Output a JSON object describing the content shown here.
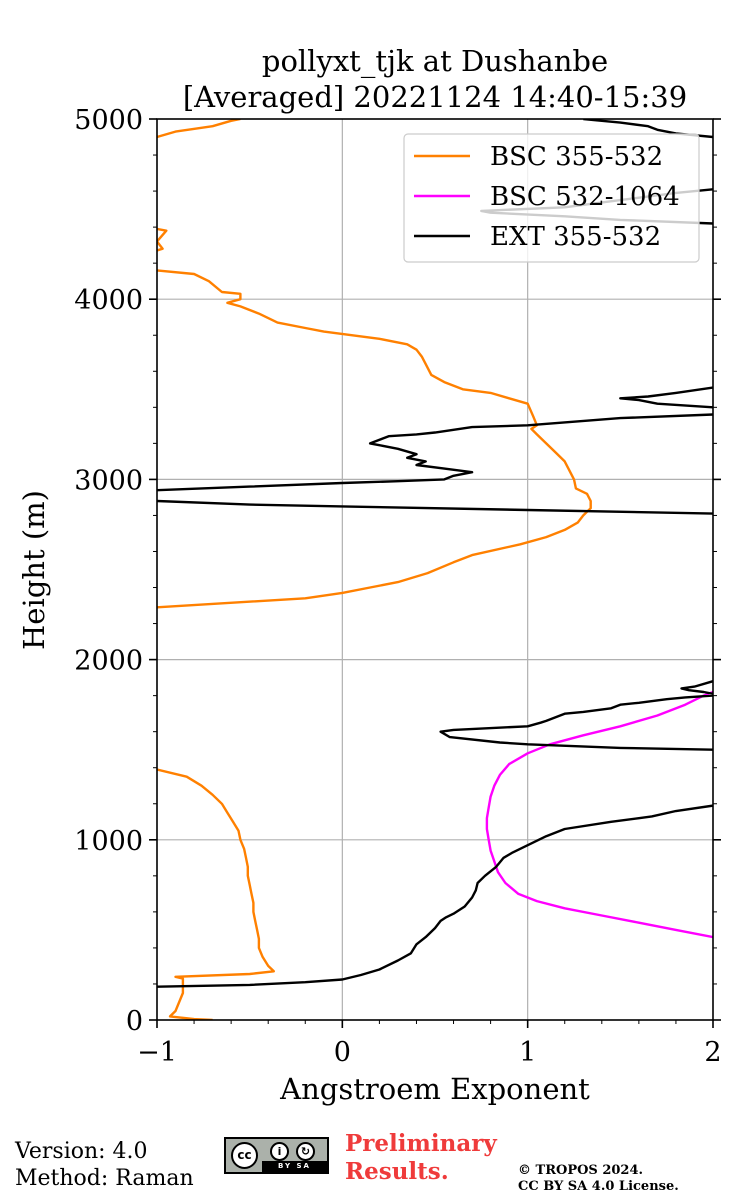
{
  "chart_data": {
    "type": "line",
    "title": [
      "pollyxt_tjk at Dushanbe",
      "[Averaged] 20221124 14:40-15:39"
    ],
    "xlabel": "Angstroem Exponent",
    "ylabel": "Height (m)",
    "xlim": [
      -1,
      2
    ],
    "ylim": [
      0,
      5000
    ],
    "xticks": [
      -1,
      0,
      1,
      2
    ],
    "xtick_labels": [
      "−1",
      "0",
      "1",
      "2"
    ],
    "yticks": [
      0,
      1000,
      2000,
      3000,
      4000,
      5000
    ],
    "ytick_labels": [
      "0",
      "1000",
      "2000",
      "3000",
      "4000",
      "5000"
    ],
    "grid": true,
    "legend_position": "upper right",
    "series": [
      {
        "name": "BSC 355-532",
        "color": "#ff8000",
        "points": [
          [
            -0.7,
            0
          ],
          [
            -0.8,
            5
          ],
          [
            -0.93,
            20
          ],
          [
            -0.9,
            50
          ],
          [
            -0.88,
            100
          ],
          [
            -0.86,
            150
          ],
          [
            -0.86,
            200
          ],
          [
            -0.86,
            230
          ],
          [
            -0.9,
            240
          ],
          [
            -0.5,
            255
          ],
          [
            -0.37,
            270
          ],
          [
            -0.4,
            300
          ],
          [
            -0.43,
            350
          ],
          [
            -0.45,
            400
          ],
          [
            -0.45,
            450
          ],
          [
            -0.46,
            500
          ],
          [
            -0.47,
            550
          ],
          [
            -0.48,
            600
          ],
          [
            -0.48,
            650
          ],
          [
            -0.49,
            700
          ],
          [
            -0.5,
            750
          ],
          [
            -0.51,
            800
          ],
          [
            -0.51,
            850
          ],
          [
            -0.52,
            900
          ],
          [
            -0.53,
            950
          ],
          [
            -0.55,
            1000
          ],
          [
            -0.56,
            1050
          ],
          [
            -0.59,
            1100
          ],
          [
            -0.62,
            1150
          ],
          [
            -0.65,
            1200
          ],
          [
            -0.7,
            1250
          ],
          [
            -0.76,
            1300
          ],
          [
            -0.84,
            1350
          ],
          [
            -1.0,
            1390
          ],
          [
            null,
            null
          ],
          [
            -1.0,
            2290
          ],
          [
            -0.2,
            2340
          ],
          [
            0.0,
            2370
          ],
          [
            0.15,
            2400
          ],
          [
            0.3,
            2430
          ],
          [
            0.46,
            2480
          ],
          [
            0.6,
            2540
          ],
          [
            0.7,
            2580
          ],
          [
            0.96,
            2640
          ],
          [
            1.1,
            2680
          ],
          [
            1.2,
            2720
          ],
          [
            1.27,
            2760
          ],
          [
            1.3,
            2800
          ],
          [
            1.34,
            2840
          ],
          [
            1.34,
            2880
          ],
          [
            1.32,
            2920
          ],
          [
            1.26,
            2950
          ],
          [
            1.25,
            3000
          ],
          [
            1.22,
            3060
          ],
          [
            1.2,
            3100
          ],
          [
            1.15,
            3150
          ],
          [
            1.1,
            3200
          ],
          [
            1.05,
            3250
          ],
          [
            1.02,
            3280
          ],
          [
            1.05,
            3300
          ],
          [
            1.03,
            3350
          ],
          [
            1.0,
            3420
          ],
          [
            0.9,
            3450
          ],
          [
            0.8,
            3480
          ],
          [
            0.65,
            3500
          ],
          [
            0.55,
            3540
          ],
          [
            0.48,
            3580
          ],
          [
            0.45,
            3640
          ],
          [
            0.43,
            3680
          ],
          [
            0.4,
            3720
          ],
          [
            0.35,
            3750
          ],
          [
            0.2,
            3780
          ],
          [
            -0.1,
            3820
          ],
          [
            -0.2,
            3840
          ],
          [
            -0.35,
            3870
          ],
          [
            -0.45,
            3920
          ],
          [
            -0.55,
            3960
          ],
          [
            -0.62,
            3980
          ],
          [
            -0.55,
            4000
          ],
          [
            -0.55,
            4030
          ],
          [
            -0.65,
            4040
          ],
          [
            -0.72,
            4100
          ],
          [
            -0.8,
            4140
          ],
          [
            -1.0,
            4160
          ],
          [
            null,
            null
          ],
          [
            -1.0,
            4270
          ],
          [
            -0.97,
            4280
          ],
          [
            -1.0,
            4320
          ],
          [
            -0.95,
            4380
          ],
          [
            -1.0,
            4390
          ],
          [
            null,
            null
          ],
          [
            -1.0,
            4900
          ],
          [
            -0.9,
            4930
          ],
          [
            -0.7,
            4960
          ],
          [
            -0.6,
            4990
          ],
          [
            -0.55,
            5000
          ]
        ]
      },
      {
        "name": "BSC 532-1064",
        "color": "#ff00ff",
        "points": [
          [
            2.0,
            460
          ],
          [
            1.8,
            500
          ],
          [
            1.6,
            540
          ],
          [
            1.4,
            580
          ],
          [
            1.2,
            620
          ],
          [
            1.05,
            660
          ],
          [
            0.95,
            700
          ],
          [
            0.88,
            760
          ],
          [
            0.84,
            820
          ],
          [
            0.82,
            880
          ],
          [
            0.8,
            940
          ],
          [
            0.79,
            1000
          ],
          [
            0.78,
            1060
          ],
          [
            0.78,
            1120
          ],
          [
            0.79,
            1180
          ],
          [
            0.8,
            1240
          ],
          [
            0.82,
            1300
          ],
          [
            0.85,
            1360
          ],
          [
            0.9,
            1420
          ],
          [
            1.0,
            1480
          ],
          [
            1.12,
            1530
          ],
          [
            1.3,
            1580
          ],
          [
            1.5,
            1630
          ],
          [
            1.7,
            1690
          ],
          [
            1.85,
            1750
          ],
          [
            1.95,
            1800
          ],
          [
            2.0,
            1820
          ]
        ]
      },
      {
        "name": "EXT 355-532",
        "color": "#000000",
        "points": [
          [
            -1.0,
            185
          ],
          [
            -0.5,
            195
          ],
          [
            -0.2,
            210
          ],
          [
            0.0,
            225
          ],
          [
            0.1,
            250
          ],
          [
            0.2,
            280
          ],
          [
            0.3,
            330
          ],
          [
            0.37,
            370
          ],
          [
            0.4,
            420
          ],
          [
            0.45,
            460
          ],
          [
            0.5,
            510
          ],
          [
            0.53,
            550
          ],
          [
            0.56,
            570
          ],
          [
            0.6,
            590
          ],
          [
            0.66,
            630
          ],
          [
            0.7,
            680
          ],
          [
            0.72,
            720
          ],
          [
            0.73,
            760
          ],
          [
            0.77,
            800
          ],
          [
            0.83,
            850
          ],
          [
            0.87,
            900
          ],
          [
            0.92,
            930
          ],
          [
            1.0,
            970
          ],
          [
            1.1,
            1020
          ],
          [
            1.2,
            1060
          ],
          [
            1.45,
            1100
          ],
          [
            1.6,
            1120
          ],
          [
            1.67,
            1130
          ],
          [
            1.8,
            1160
          ],
          [
            2.0,
            1190
          ],
          [
            null,
            null
          ],
          [
            2.0,
            1500
          ],
          [
            1.5,
            1510
          ],
          [
            1.0,
            1530
          ],
          [
            0.85,
            1540
          ],
          [
            0.58,
            1570
          ],
          [
            0.53,
            1600
          ],
          [
            0.6,
            1610
          ],
          [
            1.0,
            1630
          ],
          [
            1.07,
            1650
          ],
          [
            1.1,
            1660
          ],
          [
            1.2,
            1700
          ],
          [
            1.3,
            1710
          ],
          [
            1.45,
            1730
          ],
          [
            1.5,
            1750
          ],
          [
            1.6,
            1760
          ],
          [
            1.75,
            1780
          ],
          [
            1.85,
            1790
          ],
          [
            2.0,
            1800
          ],
          [
            null,
            null
          ],
          [
            2.0,
            1880
          ],
          [
            1.9,
            1850
          ],
          [
            1.83,
            1840
          ],
          [
            1.87,
            1830
          ],
          [
            1.95,
            1820
          ],
          [
            2.0,
            1810
          ],
          [
            null,
            null
          ],
          [
            2.0,
            2810
          ],
          [
            1.0,
            2830
          ],
          [
            0.0,
            2850
          ],
          [
            -0.5,
            2860
          ],
          [
            -1.0,
            2880
          ],
          [
            null,
            null
          ],
          [
            -1.0,
            2940
          ],
          [
            -0.5,
            2960
          ],
          [
            0.0,
            2980
          ],
          [
            0.3,
            2990
          ],
          [
            0.55,
            3000
          ],
          [
            0.6,
            3020
          ],
          [
            0.7,
            3040
          ],
          [
            0.55,
            3060
          ],
          [
            0.4,
            3080
          ],
          [
            0.45,
            3100
          ],
          [
            0.35,
            3120
          ],
          [
            0.4,
            3140
          ],
          [
            0.3,
            3170
          ],
          [
            0.2,
            3190
          ],
          [
            0.15,
            3200
          ],
          [
            0.25,
            3240
          ],
          [
            0.4,
            3250
          ],
          [
            0.5,
            3260
          ],
          [
            0.7,
            3290
          ],
          [
            1.0,
            3300
          ],
          [
            1.5,
            3340
          ],
          [
            2.0,
            3360
          ],
          [
            null,
            null
          ],
          [
            2.0,
            3400
          ],
          [
            1.7,
            3420
          ],
          [
            1.6,
            3440
          ],
          [
            1.5,
            3450
          ],
          [
            1.65,
            3460
          ],
          [
            1.8,
            3480
          ],
          [
            2.0,
            3510
          ],
          [
            null,
            null
          ],
          [
            2.0,
            4420
          ],
          [
            1.5,
            4440
          ],
          [
            1.2,
            4460
          ],
          [
            0.8,
            4480
          ],
          [
            0.75,
            4490
          ],
          [
            1.2,
            4510
          ],
          [
            1.5,
            4550
          ],
          [
            1.8,
            4590
          ],
          [
            2.0,
            4610
          ],
          [
            null,
            null
          ],
          [
            2.0,
            4900
          ],
          [
            1.8,
            4920
          ],
          [
            1.7,
            4940
          ],
          [
            1.65,
            4960
          ],
          [
            1.5,
            4980
          ],
          [
            1.4,
            4990
          ],
          [
            1.3,
            5000
          ]
        ]
      }
    ]
  },
  "footer": {
    "version": "Version: 4.0",
    "method": "Method: Raman",
    "preliminary_line1": "Preliminary",
    "preliminary_line2": "Results.",
    "copyright_line1": "© TROPOS 2024.",
    "copyright_line2": "CC BY SA 4.0 License."
  }
}
